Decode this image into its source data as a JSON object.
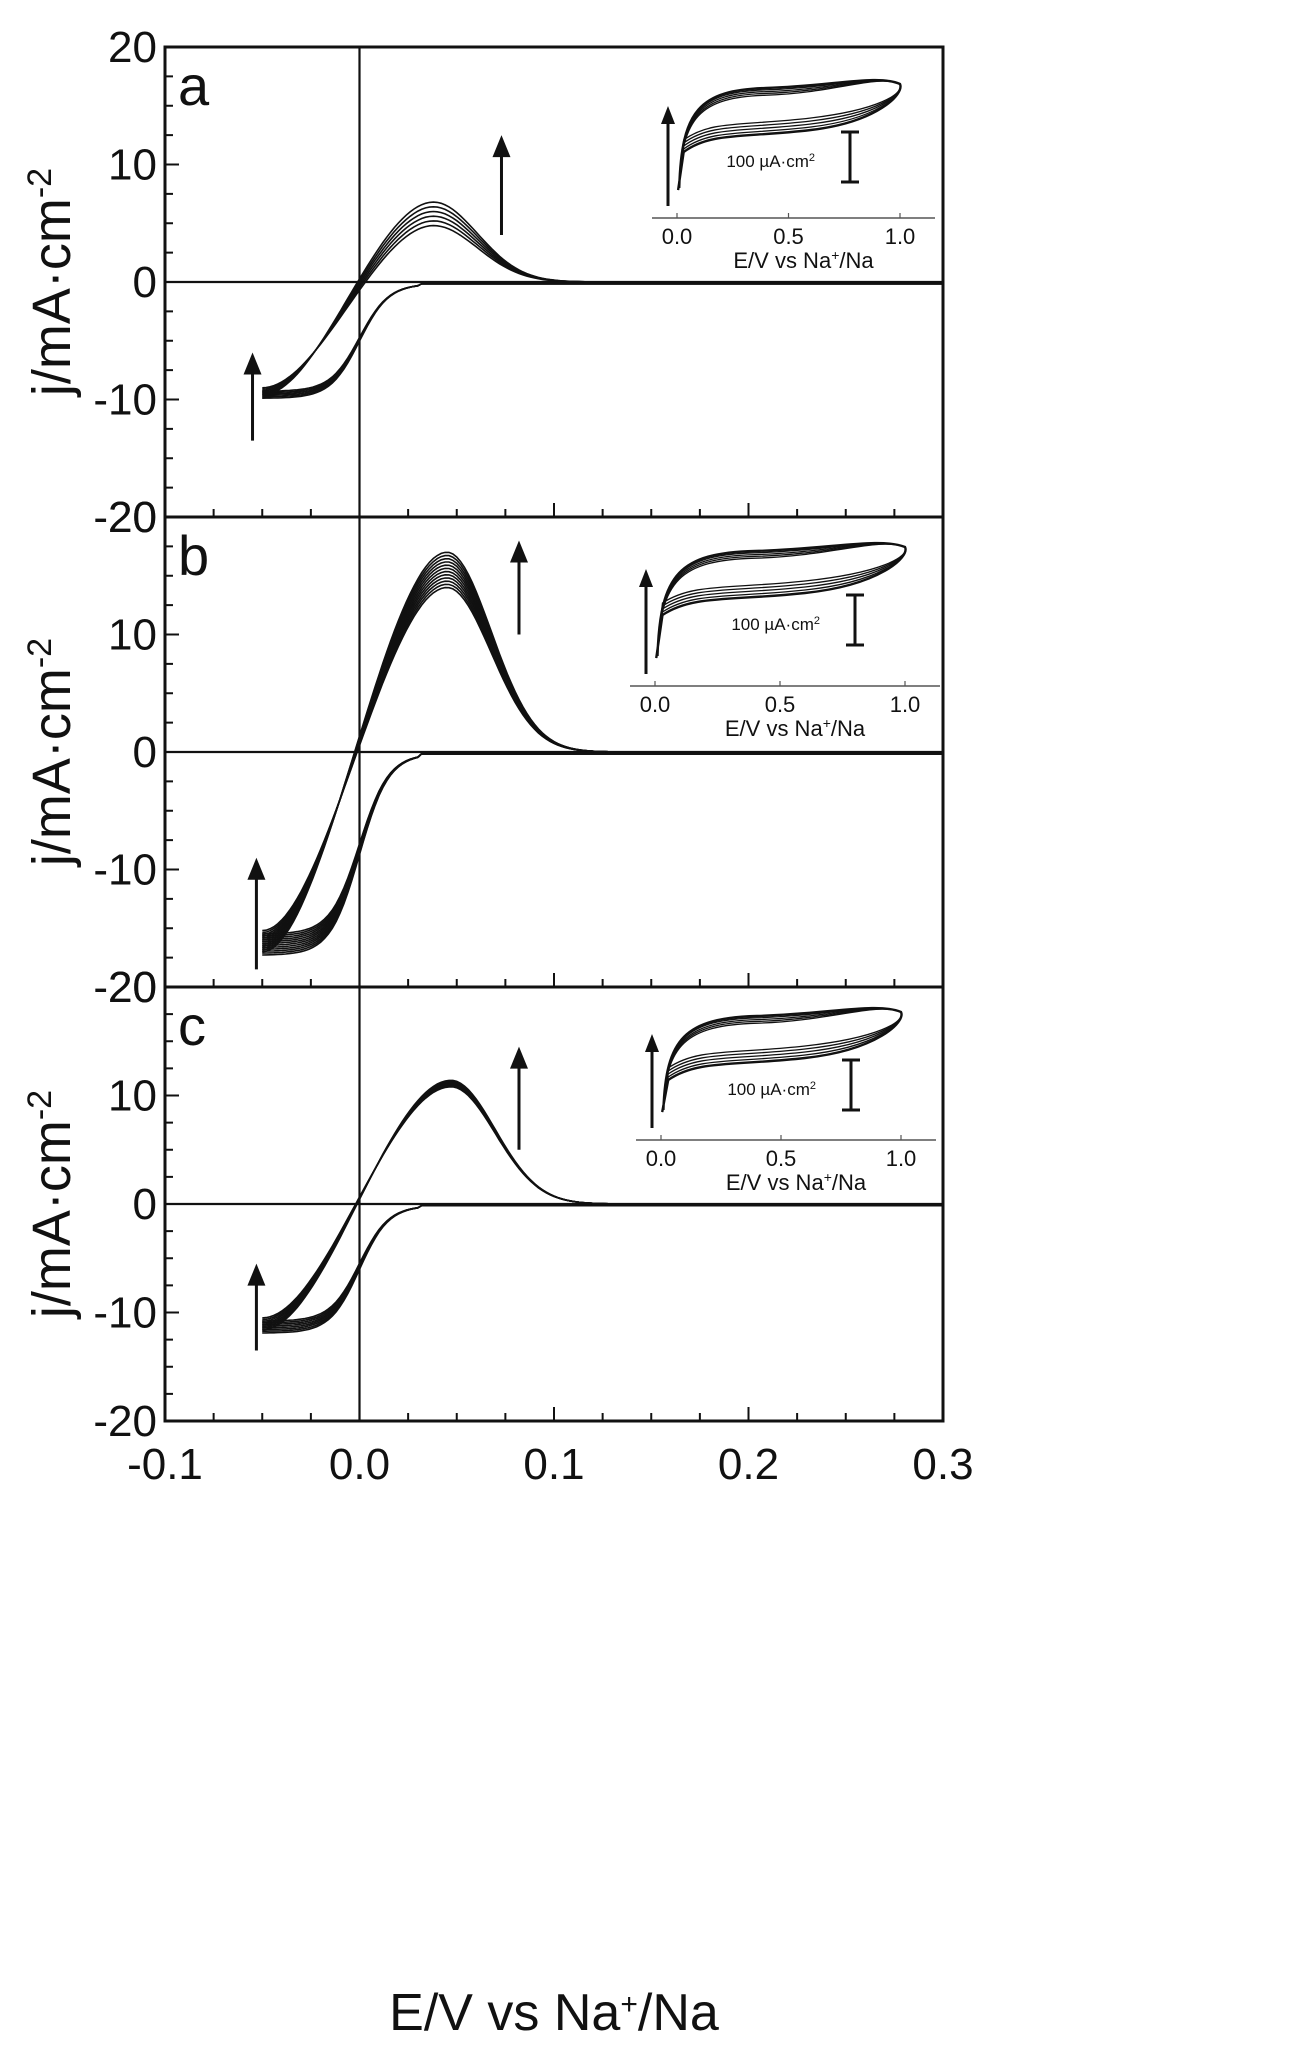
{
  "chart_data": [
    {
      "type": "line",
      "panel_label": "a",
      "xlabel_main": "E/V vs Na",
      "xlabel_sup": "+",
      "xlabel_tail": "/Na",
      "ylabel_main": "j/mA·cm",
      "ylabel_sup": "-2",
      "xlim": [
        -0.1,
        0.3
      ],
      "ylim": [
        -20,
        20
      ],
      "x_ticks": [
        -0.1,
        0.0,
        0.1,
        0.2,
        0.3
      ],
      "x_tick_labels": [
        "-0.1",
        "0.0",
        "0.1",
        "0.2",
        "0.3"
      ],
      "y_ticks": [
        -20,
        -10,
        0,
        10,
        20
      ],
      "y_tick_labels": [
        "-20",
        "-10",
        "0",
        "10",
        "20"
      ],
      "cycles": 6,
      "peak_x": 0.038,
      "anodic_peak_min": 4.8,
      "anodic_peak_max": 6.8,
      "cathodic_min_start": -9.0,
      "cathodic_min_end": -9.6,
      "arrow_anodic": {
        "x": 0.073,
        "y_from": 4.0,
        "y_to": 12.5
      },
      "arrow_cathodic": {
        "x": -0.055,
        "y_from": -13.5,
        "y_to": -6.0
      },
      "inset": {
        "x_tick_labels": [
          "0.0",
          "0.5",
          "1.0"
        ],
        "xlabel_main": "E/V vs Na",
        "xlabel_sup": "+",
        "xlabel_tail": "/Na",
        "scale_label": "100 µA·cm",
        "scale_sup": "2"
      }
    },
    {
      "type": "line",
      "panel_label": "b",
      "xlabel_main": "E/V vs Na",
      "xlabel_sup": "+",
      "xlabel_tail": "/Na",
      "ylabel_main": "j/mA·cm",
      "ylabel_sup": "-2",
      "xlim": [
        -0.1,
        0.3
      ],
      "ylim": [
        -20,
        20
      ],
      "x_ticks": [
        -0.1,
        0.0,
        0.1,
        0.2,
        0.3
      ],
      "x_tick_labels": [
        "-0.1",
        "0.0",
        "0.1",
        "0.2",
        "0.3"
      ],
      "y_ticks": [
        -20,
        -10,
        0,
        10,
        20
      ],
      "y_tick_labels": [
        "-20",
        "-10",
        "0",
        "10",
        "20"
      ],
      "cycles": 12,
      "peak_x": 0.045,
      "anodic_peak_min": 14.0,
      "anodic_peak_max": 17.0,
      "cathodic_min_start": -15.2,
      "cathodic_min_end": -17.0,
      "arrow_anodic": {
        "x": 0.082,
        "y_from": 10.0,
        "y_to": 18.0
      },
      "arrow_cathodic": {
        "x": -0.053,
        "y_from": -18.5,
        "y_to": -9.0
      },
      "inset": {
        "x_tick_labels": [
          "0.0",
          "0.5",
          "1.0"
        ],
        "xlabel_main": "E/V vs Na",
        "xlabel_sup": "+",
        "xlabel_tail": "/Na",
        "scale_label": "100 µA·cm",
        "scale_sup": "2"
      }
    },
    {
      "type": "line",
      "panel_label": "c",
      "xlabel_main": "E/V vs Na",
      "xlabel_sup": "+",
      "xlabel_tail": "/Na",
      "ylabel_main": "j/mA·cm",
      "ylabel_sup": "-2",
      "xlim": [
        -0.1,
        0.3
      ],
      "ylim": [
        -20,
        20
      ],
      "x_ticks": [
        -0.1,
        0.0,
        0.1,
        0.2,
        0.3
      ],
      "x_tick_labels": [
        "-0.1",
        "0.0",
        "0.1",
        "0.2",
        "0.3"
      ],
      "y_ticks": [
        -20,
        -10,
        0,
        10,
        20
      ],
      "y_tick_labels": [
        "-20",
        "-10",
        "0",
        "10",
        "20"
      ],
      "cycles": 8,
      "peak_x": 0.047,
      "anodic_peak_min": 10.8,
      "anodic_peak_max": 11.4,
      "cathodic_min_start": -10.5,
      "cathodic_min_end": -11.6,
      "arrow_anodic": {
        "x": 0.082,
        "y_from": 5.0,
        "y_to": 14.5
      },
      "arrow_cathodic": {
        "x": -0.053,
        "y_from": -13.5,
        "y_to": -5.5
      },
      "inset": {
        "x_tick_labels": [
          "0.0",
          "0.5",
          "1.0"
        ],
        "xlabel_main": "E/V vs Na",
        "xlabel_sup": "+",
        "xlabel_tail": "/Na",
        "scale_label": "100 µA·cm",
        "scale_sup": "2"
      }
    }
  ],
  "colors": {
    "line": "#111111",
    "axis": "#111111",
    "background": "#ffffff"
  }
}
